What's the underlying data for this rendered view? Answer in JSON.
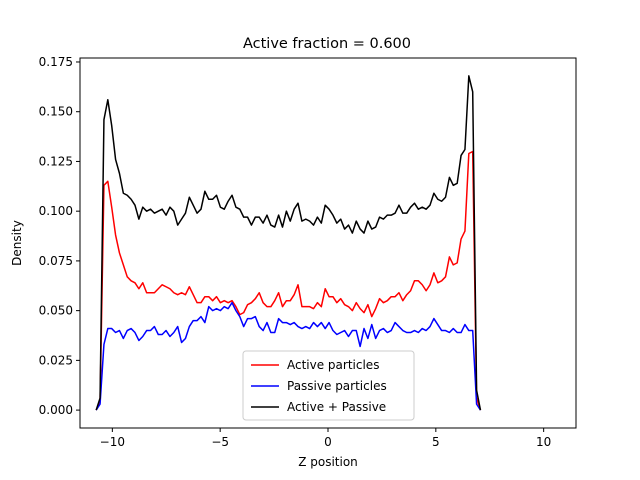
{
  "chart_data": {
    "type": "line",
    "title": "Active fraction = 0.600",
    "xlabel": "Z position",
    "ylabel": "Density",
    "xlim": [
      -11.5,
      11.5
    ],
    "ylim": [
      -0.009,
      0.177
    ],
    "xticks": [
      -10,
      -5,
      0,
      5,
      10
    ],
    "xtick_labels": [
      "−10",
      "−5",
      "0",
      "5",
      "10"
    ],
    "yticks": [
      0.0,
      0.025,
      0.05,
      0.075,
      0.1,
      0.125,
      0.15,
      0.175
    ],
    "ytick_labels": [
      "0.000",
      "0.025",
      "0.050",
      "0.075",
      "0.100",
      "0.125",
      "0.150",
      "0.175"
    ],
    "grid": false,
    "legend_position": "lower-center",
    "x_start": -10.75,
    "x_step": 0.18,
    "series": [
      {
        "name": "Active particles",
        "color": "#ff0000",
        "values": [
          0.0,
          0.004,
          0.113,
          0.115,
          0.102,
          0.088,
          0.079,
          0.073,
          0.067,
          0.065,
          0.064,
          0.061,
          0.064,
          0.059,
          0.059,
          0.059,
          0.061,
          0.063,
          0.062,
          0.061,
          0.059,
          0.058,
          0.059,
          0.058,
          0.062,
          0.058,
          0.054,
          0.054,
          0.057,
          0.057,
          0.055,
          0.057,
          0.054,
          0.055,
          0.054,
          0.055,
          0.052,
          0.048,
          0.049,
          0.053,
          0.054,
          0.056,
          0.059,
          0.054,
          0.052,
          0.052,
          0.055,
          0.059,
          0.052,
          0.055,
          0.055,
          0.058,
          0.063,
          0.052,
          0.052,
          0.052,
          0.051,
          0.054,
          0.052,
          0.061,
          0.057,
          0.057,
          0.054,
          0.056,
          0.053,
          0.052,
          0.05,
          0.054,
          0.051,
          0.049,
          0.053,
          0.047,
          0.051,
          0.056,
          0.054,
          0.055,
          0.057,
          0.057,
          0.059,
          0.055,
          0.058,
          0.06,
          0.065,
          0.065,
          0.063,
          0.06,
          0.063,
          0.069,
          0.064,
          0.065,
          0.067,
          0.077,
          0.073,
          0.074,
          0.086,
          0.09,
          0.129,
          0.13,
          0.006,
          0.0
        ]
      },
      {
        "name": "Passive particles",
        "color": "#0000ff",
        "values": [
          0.0,
          0.003,
          0.033,
          0.041,
          0.041,
          0.039,
          0.04,
          0.036,
          0.04,
          0.041,
          0.039,
          0.035,
          0.037,
          0.04,
          0.04,
          0.042,
          0.038,
          0.038,
          0.04,
          0.037,
          0.039,
          0.042,
          0.034,
          0.036,
          0.042,
          0.045,
          0.045,
          0.047,
          0.044,
          0.052,
          0.05,
          0.051,
          0.05,
          0.052,
          0.051,
          0.054,
          0.05,
          0.047,
          0.042,
          0.046,
          0.046,
          0.047,
          0.042,
          0.04,
          0.044,
          0.039,
          0.039,
          0.046,
          0.044,
          0.044,
          0.043,
          0.044,
          0.042,
          0.041,
          0.042,
          0.041,
          0.044,
          0.042,
          0.044,
          0.041,
          0.044,
          0.04,
          0.038,
          0.039,
          0.04,
          0.037,
          0.04,
          0.04,
          0.032,
          0.041,
          0.036,
          0.043,
          0.036,
          0.04,
          0.041,
          0.039,
          0.04,
          0.044,
          0.042,
          0.04,
          0.039,
          0.039,
          0.04,
          0.039,
          0.041,
          0.04,
          0.042,
          0.046,
          0.043,
          0.04,
          0.04,
          0.039,
          0.041,
          0.039,
          0.039,
          0.043,
          0.04,
          0.04,
          0.003,
          0.0
        ]
      },
      {
        "name": "Active + Passive",
        "color": "#000000",
        "values": [
          0.0,
          0.006,
          0.146,
          0.156,
          0.143,
          0.126,
          0.119,
          0.109,
          0.108,
          0.106,
          0.103,
          0.096,
          0.102,
          0.1,
          0.101,
          0.099,
          0.1,
          0.101,
          0.098,
          0.102,
          0.1,
          0.093,
          0.096,
          0.099,
          0.107,
          0.103,
          0.099,
          0.101,
          0.11,
          0.106,
          0.106,
          0.108,
          0.102,
          0.101,
          0.105,
          0.108,
          0.102,
          0.101,
          0.097,
          0.097,
          0.093,
          0.097,
          0.097,
          0.094,
          0.098,
          0.093,
          0.092,
          0.098,
          0.092,
          0.1,
          0.095,
          0.101,
          0.104,
          0.095,
          0.096,
          0.095,
          0.093,
          0.097,
          0.094,
          0.103,
          0.101,
          0.098,
          0.094,
          0.096,
          0.091,
          0.093,
          0.089,
          0.095,
          0.091,
          0.089,
          0.095,
          0.091,
          0.092,
          0.097,
          0.096,
          0.098,
          0.098,
          0.099,
          0.103,
          0.099,
          0.099,
          0.102,
          0.104,
          0.101,
          0.102,
          0.101,
          0.103,
          0.109,
          0.106,
          0.105,
          0.107,
          0.117,
          0.113,
          0.114,
          0.128,
          0.131,
          0.168,
          0.16,
          0.01,
          0.0
        ]
      }
    ]
  }
}
